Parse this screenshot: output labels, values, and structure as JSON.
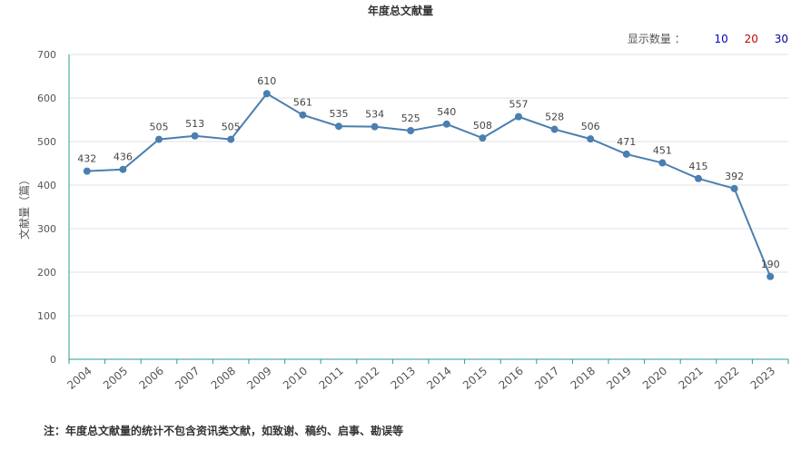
{
  "controls": {
    "count_label": "显示数量 ：",
    "options": [
      {
        "label": "10",
        "color": "#0000cc"
      },
      {
        "label": "20",
        "color": "#cc0000"
      },
      {
        "label": "30",
        "color": "#000099"
      }
    ]
  },
  "footnote": "注：年度总文献量的统计不包含资讯类文献，如致谢、稿约、启事、勘误等",
  "chart_data": {
    "type": "line",
    "title": "年度总文献量",
    "ylabel": "文献量（篇）",
    "xlabel": "",
    "ylim": [
      0,
      700
    ],
    "yticks": [
      0,
      100,
      200,
      300,
      400,
      500,
      600,
      700
    ],
    "grid": true,
    "line_color": "#4a7fb0",
    "x": [
      "2004",
      "2005",
      "2006",
      "2007",
      "2008",
      "2009",
      "2010",
      "2011",
      "2012",
      "2013",
      "2014",
      "2015",
      "2016",
      "2017",
      "2018",
      "2019",
      "2020",
      "2021",
      "2022",
      "2023"
    ],
    "values": [
      432,
      436,
      505,
      513,
      505,
      610,
      561,
      535,
      534,
      525,
      540,
      508,
      557,
      528,
      506,
      471,
      451,
      415,
      392,
      190
    ]
  }
}
